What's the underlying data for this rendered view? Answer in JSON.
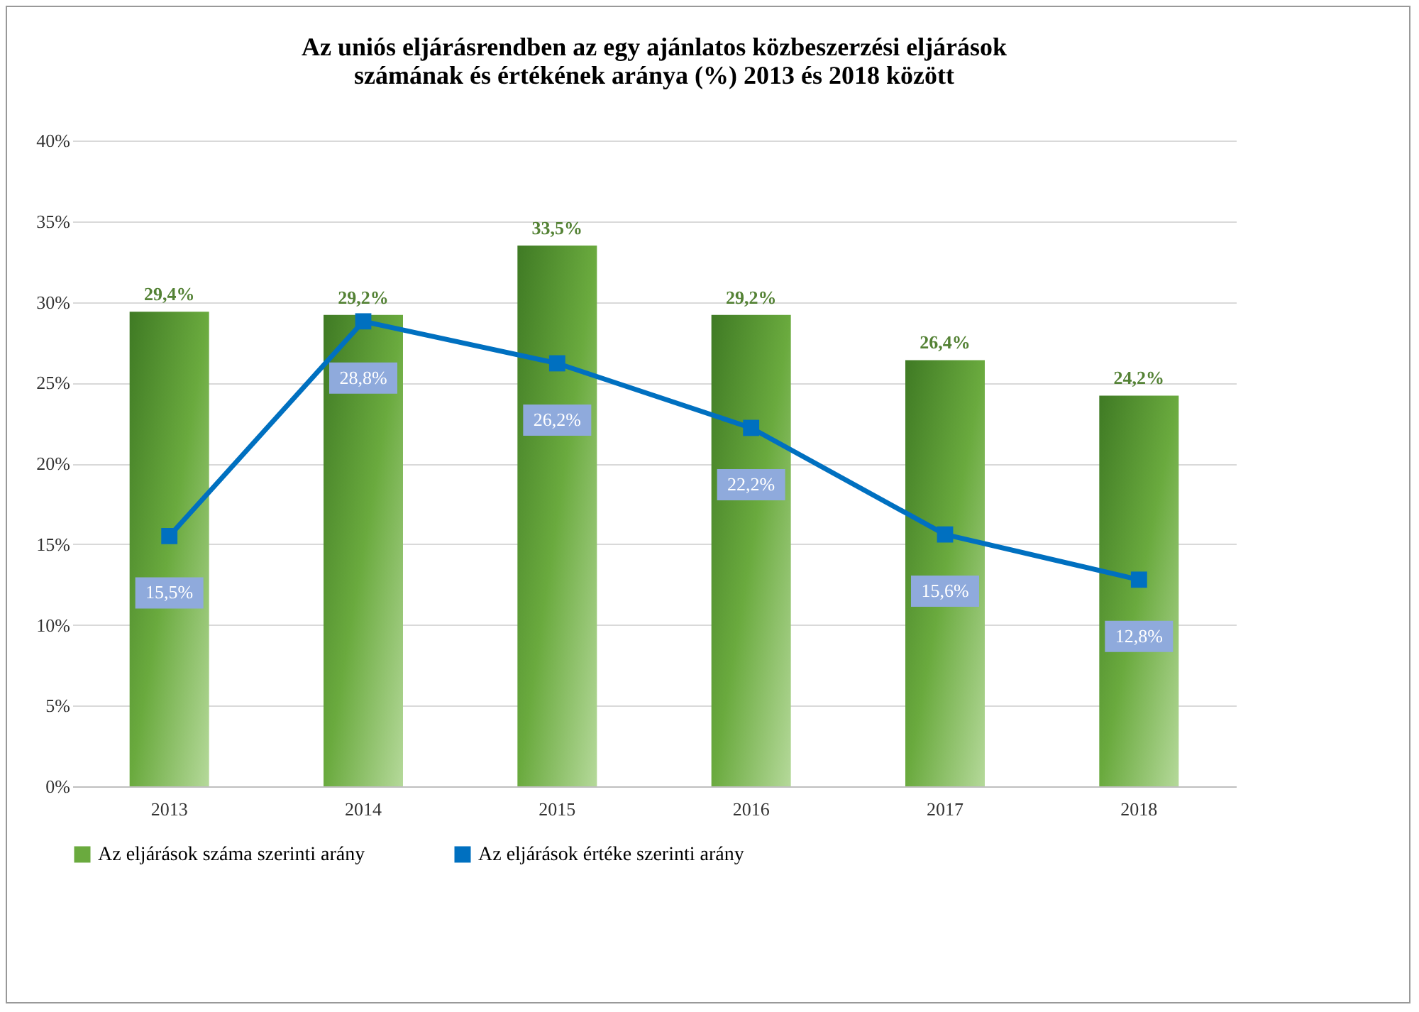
{
  "chart_data": {
    "type": "bar",
    "title": "Az uniós eljárásrendben az egy ajánlatos közbeszerzési eljárások\nszámának és értékének aránya (%) 2013 és 2018 között",
    "categories": [
      "2013",
      "2014",
      "2015",
      "2016",
      "2017",
      "2018"
    ],
    "series": [
      {
        "name": "Az eljárások száma szerinti arány",
        "color": "#6aaa3e",
        "values": [
          29.4,
          29.2,
          33.5,
          29.2,
          26.4,
          24.2
        ],
        "value_labels": [
          "29,4%",
          "29,2%",
          "33,5%",
          "29,2%",
          "26,4%",
          "24,2%"
        ]
      },
      {
        "name": "Az eljárások értéke szerinti arány",
        "type": "line",
        "color": "#0070c0",
        "marker": "square",
        "values": [
          15.5,
          28.8,
          26.2,
          22.2,
          15.6,
          12.8
        ],
        "value_labels": [
          "15,5%",
          "28,8%",
          "26,2%",
          "22,2%",
          "15,6%",
          "12,8%"
        ]
      }
    ],
    "ylim": [
      0,
      40
    ],
    "yticks": [
      {
        "value": 0,
        "label": "0%"
      },
      {
        "value": 5,
        "label": "5%"
      },
      {
        "value": 10,
        "label": "10%"
      },
      {
        "value": 15,
        "label": "15%"
      },
      {
        "value": 20,
        "label": "20%"
      },
      {
        "value": 25,
        "label": "25%"
      },
      {
        "value": 30,
        "label": "30%"
      },
      {
        "value": 35,
        "label": "35%"
      },
      {
        "value": 40,
        "label": "40%"
      }
    ],
    "grid": "y",
    "legend": "bottom"
  }
}
